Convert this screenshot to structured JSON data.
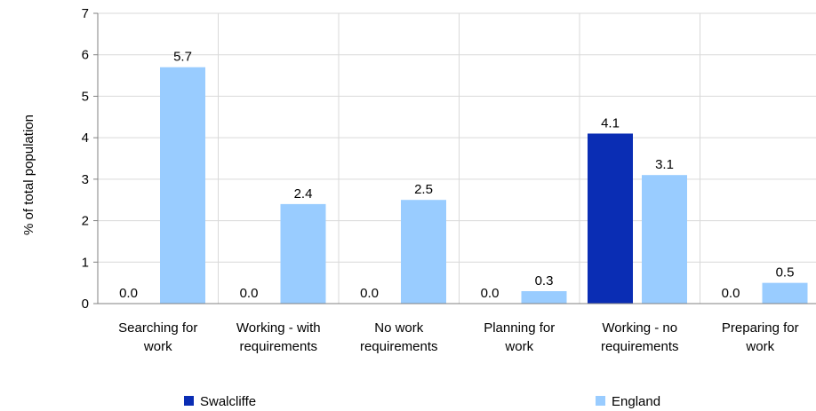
{
  "chart_data": {
    "type": "bar",
    "ylabel": "% of total population",
    "ylim": [
      0,
      7
    ],
    "yticks": [
      0,
      1,
      2,
      3,
      4,
      5,
      6,
      7
    ],
    "grid": true,
    "legend_position": "bottom",
    "categories": [
      [
        "Searching for",
        "work"
      ],
      [
        "Working - with",
        "requirements"
      ],
      [
        "No work",
        "requirements"
      ],
      [
        "Planning for",
        "work"
      ],
      [
        "Working - no",
        "requirements"
      ],
      [
        "Preparing for",
        "work"
      ]
    ],
    "series": [
      {
        "name": "Swalcliffe",
        "color": "#0a2db4",
        "values": [
          0.0,
          0.0,
          0.0,
          0.0,
          4.1,
          0.0
        ]
      },
      {
        "name": "England",
        "color": "#99ccff",
        "values": [
          5.7,
          2.4,
          2.5,
          0.3,
          3.1,
          0.5
        ]
      }
    ]
  }
}
